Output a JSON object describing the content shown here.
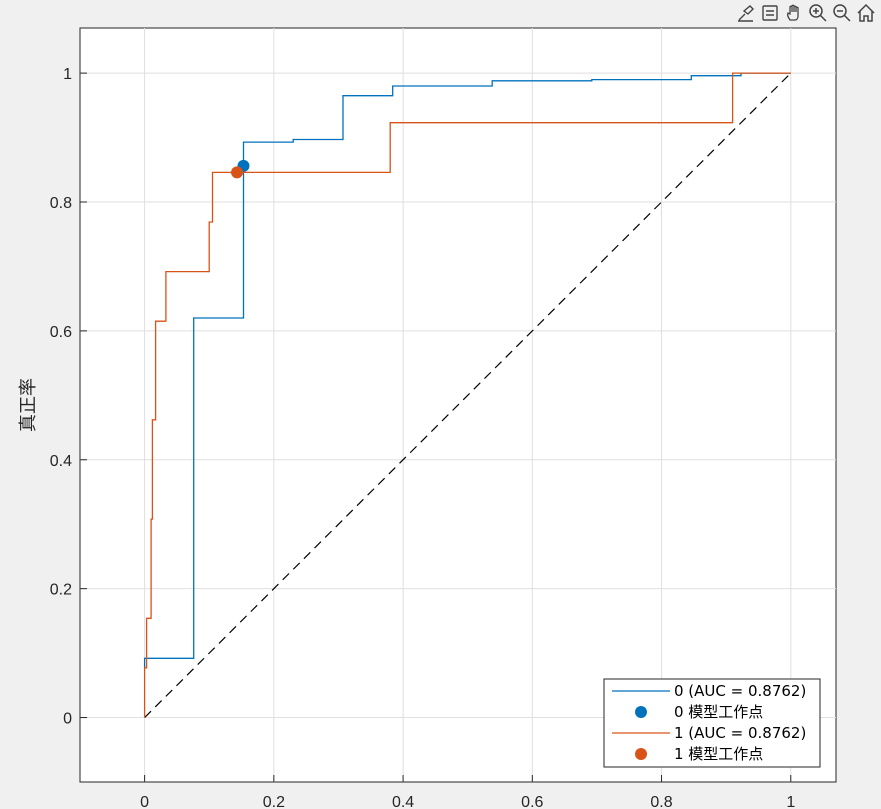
{
  "toolbar": {
    "buttons": [
      {
        "name": "brush-icon"
      },
      {
        "name": "data-tips-icon"
      },
      {
        "name": "pan-hand-icon"
      },
      {
        "name": "zoom-in-icon"
      },
      {
        "name": "zoom-out-icon"
      },
      {
        "name": "home-icon"
      }
    ]
  },
  "chart_data": {
    "type": "line",
    "title": "",
    "xlabel": "",
    "ylabel": "真正率",
    "xlim": [
      -0.1,
      1.07
    ],
    "ylim": [
      -0.1,
      1.07
    ],
    "xticks": [
      0,
      0.2,
      0.4,
      0.6,
      0.8,
      1
    ],
    "xtick_labels": [
      "0",
      "0.2",
      "0.4",
      "0.6",
      "0.8",
      "1"
    ],
    "yticks": [
      0,
      0.2,
      0.4,
      0.6,
      0.8,
      1
    ],
    "ytick_labels": [
      "0",
      "0.2",
      "0.4",
      "0.6",
      "0.8",
      "1"
    ],
    "grid": true,
    "legend_position": "bottom-right",
    "series": [
      {
        "name": "0 (AUC = 0.8762)",
        "color": "#0072BD",
        "style": "step",
        "points": [
          [
            0,
            0.077
          ],
          [
            0,
            0.092
          ],
          [
            0.076,
            0.092
          ],
          [
            0.076,
            0.62
          ],
          [
            0.153,
            0.62
          ],
          [
            0.153,
            0.893
          ],
          [
            0.23,
            0.893
          ],
          [
            0.23,
            0.897
          ],
          [
            0.307,
            0.897
          ],
          [
            0.307,
            0.965
          ],
          [
            0.384,
            0.965
          ],
          [
            0.384,
            0.98
          ],
          [
            0.538,
            0.98
          ],
          [
            0.538,
            0.988
          ],
          [
            0.692,
            0.988
          ],
          [
            0.692,
            0.99
          ],
          [
            0.846,
            0.99
          ],
          [
            0.846,
            0.996
          ],
          [
            0.923,
            0.996
          ],
          [
            0.923,
            1
          ],
          [
            1,
            1
          ]
        ]
      },
      {
        "name": "0 模型工作点",
        "color": "#0072BD",
        "style": "marker",
        "points": [
          [
            0.153,
            0.856
          ]
        ]
      },
      {
        "name": "1 (AUC = 0.8762)",
        "color": "#D95319",
        "style": "step",
        "points": [
          [
            0,
            0
          ],
          [
            0,
            0.077
          ],
          [
            0.003,
            0.077
          ],
          [
            0.003,
            0.154
          ],
          [
            0.01,
            0.154
          ],
          [
            0.01,
            0.308
          ],
          [
            0.012,
            0.308
          ],
          [
            0.012,
            0.462
          ],
          [
            0.017,
            0.462
          ],
          [
            0.017,
            0.615
          ],
          [
            0.033,
            0.615
          ],
          [
            0.033,
            0.692
          ],
          [
            0.1,
            0.692
          ],
          [
            0.1,
            0.769
          ],
          [
            0.105,
            0.769
          ],
          [
            0.105,
            0.846
          ],
          [
            0.38,
            0.846
          ],
          [
            0.38,
            0.923
          ],
          [
            0.91,
            0.923
          ],
          [
            0.91,
            1
          ],
          [
            1,
            1
          ]
        ]
      },
      {
        "name": "1 模型工作点",
        "color": "#D95319",
        "style": "marker",
        "points": [
          [
            0.143,
            0.846
          ]
        ]
      }
    ],
    "reference_line": {
      "points": [
        [
          0,
          0
        ],
        [
          1,
          1
        ]
      ],
      "color": "#000000",
      "dashed": true
    }
  }
}
